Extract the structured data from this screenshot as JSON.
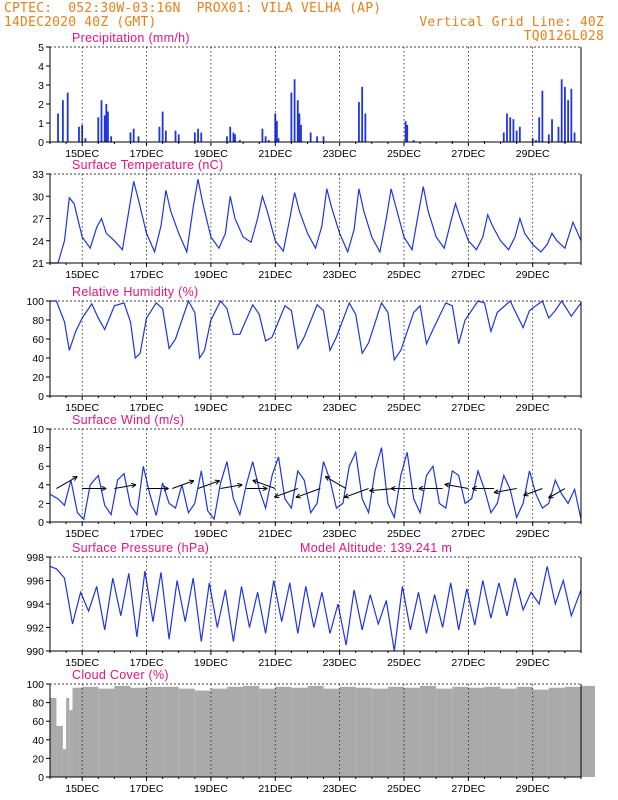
{
  "header": {
    "line1": "CPTEC:  052:30W-03:16N  PROX01: VILA VELHA (AP)",
    "line2_left": "14DEC2020 40Z (GMT)",
    "line2_right": "Vertical Grid Line: 40Z",
    "line3_right": "TQ0126L028",
    "color": "#e8801a"
  },
  "colors": {
    "title": "#e8127c",
    "line": "#1f35e0",
    "bar": "#1f35e0",
    "cloud": "#aaaaaa",
    "wind_arrow": "#000000"
  },
  "chart_data": [
    {
      "type": "bar",
      "title": "Precipitation (mm/h)",
      "x_tick_labels": [
        "15DEC",
        "17DEC",
        "19DEC",
        "21DEC",
        "23DEC",
        "25DEC",
        "27DEC",
        "29DEC"
      ],
      "ylim": [
        0,
        5
      ],
      "y_ticks": [
        0,
        1,
        2,
        3,
        4,
        5
      ],
      "x_day": [
        0.25,
        0.4,
        0.55,
        0.9,
        1.0,
        1.1,
        1.5,
        1.6,
        1.7,
        1.75,
        1.8,
        1.9,
        2.5,
        2.6,
        2.75,
        3.4,
        3.5,
        3.6,
        3.9,
        4.0,
        4.5,
        4.6,
        4.7,
        5.5,
        5.6,
        5.7,
        5.75,
        5.9,
        6.6,
        6.7,
        6.8,
        7.0,
        7.05,
        7.1,
        7.5,
        7.6,
        7.7,
        7.75,
        7.8,
        8.1,
        8.3,
        8.5,
        9.6,
        9.7,
        9.8,
        11.05,
        11.1,
        11.3,
        12.5,
        13.5,
        14.1,
        14.2,
        14.3,
        14.4,
        14.5,
        14.6,
        15.0,
        15.1,
        15.2,
        15.3,
        15.5,
        15.6,
        15.8,
        15.9,
        16.0,
        16.1,
        16.2,
        16.3
      ],
      "values": [
        1.5,
        2.2,
        2.6,
        0.8,
        0.9,
        0.2,
        1.3,
        2.2,
        1.4,
        2.0,
        1.6,
        0.3,
        0.5,
        0.7,
        0.3,
        0.8,
        1.6,
        0.6,
        0.6,
        0.4,
        0.5,
        0.7,
        0.5,
        0.3,
        0.8,
        0.5,
        0.4,
        0.1,
        0.7,
        0.3,
        0.1,
        1.5,
        1.1,
        0.2,
        2.6,
        3.3,
        2.2,
        1.5,
        0.9,
        0.5,
        0.3,
        0.3,
        2.1,
        2.9,
        1.5,
        1.1,
        0.9,
        0.1,
        0.05,
        0.05,
        0.5,
        1.5,
        1.3,
        1.2,
        0.6,
        0.8,
        0.2,
        0.1,
        1.3,
        2.7,
        0.4,
        1.2,
        0.8,
        3.3,
        2.9,
        2.2,
        2.8,
        0.5
      ]
    },
    {
      "type": "line",
      "title": "Surface Temperature (nC)",
      "x_tick_labels": [
        "15DEC",
        "17DEC",
        "19DEC",
        "21DEC",
        "23DEC",
        "25DEC",
        "27DEC",
        "29DEC"
      ],
      "ylim": [
        21,
        33
      ],
      "y_ticks": [
        21,
        24,
        27,
        30,
        33
      ],
      "x_day": [
        0,
        0.25,
        0.45,
        0.6,
        0.75,
        1.0,
        1.25,
        1.45,
        1.6,
        1.75,
        2.0,
        2.25,
        2.45,
        2.6,
        2.75,
        3.0,
        3.25,
        3.45,
        3.6,
        3.75,
        4.0,
        4.25,
        4.45,
        4.6,
        4.75,
        5.0,
        5.25,
        5.45,
        5.6,
        5.75,
        6.0,
        6.25,
        6.45,
        6.6,
        6.75,
        7.0,
        7.25,
        7.45,
        7.6,
        7.75,
        8.0,
        8.25,
        8.45,
        8.6,
        8.75,
        9.0,
        9.25,
        9.45,
        9.6,
        9.75,
        10.0,
        10.25,
        10.45,
        10.6,
        10.75,
        11.0,
        11.25,
        11.45,
        11.6,
        11.75,
        12.0,
        12.25,
        12.45,
        12.6,
        12.75,
        13.0,
        13.25,
        13.45,
        13.6,
        13.75,
        14.0,
        14.25,
        14.45,
        14.6,
        14.75,
        15.0,
        15.25,
        15.45,
        15.6,
        15.75,
        16.0,
        16.25,
        16.5
      ],
      "values": [
        21.0,
        21.0,
        24.0,
        29.8,
        29.0,
        24.5,
        23.0,
        25.8,
        27.0,
        25.0,
        24.0,
        22.8,
        28.0,
        32.0,
        29.5,
        25.0,
        22.5,
        26.0,
        30.8,
        28.0,
        25.0,
        22.5,
        28.5,
        32.3,
        29.0,
        24.5,
        23.0,
        25.0,
        30.0,
        27.0,
        24.5,
        23.8,
        27.0,
        30.0,
        28.0,
        24.0,
        22.6,
        27.0,
        30.5,
        28.0,
        25.0,
        23.0,
        26.0,
        31.0,
        28.5,
        25.0,
        22.5,
        25.5,
        31.0,
        28.0,
        24.5,
        22.5,
        27.0,
        31.0,
        28.5,
        24.5,
        22.8,
        27.8,
        31.3,
        28.0,
        24.5,
        23.0,
        26.5,
        29.0,
        27.0,
        24.0,
        22.8,
        24.5,
        27.5,
        26.0,
        24.0,
        22.8,
        24.5,
        27.0,
        25.0,
        23.5,
        22.5,
        23.5,
        25.0,
        24.0,
        23.0,
        26.5,
        24.0
      ]
    },
    {
      "type": "line",
      "title": "Relative Humidity (%)",
      "x_tick_labels": [
        "15DEC",
        "17DEC",
        "19DEC",
        "21DEC",
        "23DEC",
        "25DEC",
        "27DEC",
        "29DEC"
      ],
      "ylim": [
        0,
        100
      ],
      "y_ticks": [
        0,
        20,
        40,
        60,
        80,
        100
      ],
      "x_day": [
        0,
        0.2,
        0.45,
        0.6,
        0.8,
        1.0,
        1.3,
        1.5,
        1.7,
        2.0,
        2.3,
        2.5,
        2.65,
        2.8,
        3.0,
        3.3,
        3.5,
        3.7,
        3.9,
        4.3,
        4.5,
        4.65,
        4.8,
        5.0,
        5.3,
        5.5,
        5.7,
        5.9,
        6.3,
        6.5,
        6.7,
        6.9,
        7.3,
        7.5,
        7.7,
        7.9,
        8.3,
        8.5,
        8.7,
        8.9,
        9.3,
        9.5,
        9.7,
        9.9,
        10.3,
        10.5,
        10.7,
        10.9,
        11.3,
        11.5,
        11.7,
        11.9,
        12.3,
        12.5,
        12.7,
        12.9,
        13.3,
        13.5,
        13.7,
        13.9,
        14.3,
        14.5,
        14.7,
        14.9,
        15.3,
        15.5,
        15.7,
        15.9,
        16.2,
        16.5
      ],
      "values": [
        100,
        100,
        78,
        48,
        68,
        82,
        97,
        82,
        70,
        95,
        98,
        78,
        40,
        45,
        82,
        98,
        92,
        50,
        60,
        100,
        88,
        40,
        48,
        80,
        100,
        92,
        65,
        65,
        96,
        86,
        58,
        62,
        95,
        90,
        50,
        62,
        96,
        90,
        48,
        62,
        98,
        86,
        45,
        56,
        98,
        88,
        38,
        48,
        88,
        95,
        55,
        70,
        98,
        95,
        55,
        80,
        100,
        98,
        68,
        88,
        100,
        86,
        72,
        90,
        100,
        82,
        90,
        100,
        84,
        98
      ]
    },
    {
      "type": "line",
      "title": "Surface Wind (m/s)",
      "x_tick_labels": [
        "15DEC",
        "17DEC",
        "19DEC",
        "21DEC",
        "23DEC",
        "25DEC",
        "27DEC",
        "29DEC"
      ],
      "ylim": [
        0,
        10
      ],
      "y_ticks": [
        0,
        2,
        4,
        6,
        8,
        10
      ],
      "x_day": [
        0,
        0.25,
        0.45,
        0.65,
        0.85,
        1.05,
        1.25,
        1.5,
        1.7,
        1.9,
        2.1,
        2.3,
        2.5,
        2.7,
        2.9,
        3.1,
        3.3,
        3.5,
        3.7,
        3.9,
        4.1,
        4.3,
        4.5,
        4.7,
        4.9,
        5.1,
        5.3,
        5.5,
        5.7,
        5.9,
        6.1,
        6.3,
        6.5,
        6.7,
        6.9,
        7.1,
        7.3,
        7.5,
        7.7,
        7.9,
        8.1,
        8.3,
        8.5,
        8.7,
        8.9,
        9.1,
        9.3,
        9.5,
        9.7,
        9.9,
        10.1,
        10.3,
        10.5,
        10.7,
        10.9,
        11.1,
        11.3,
        11.5,
        11.7,
        11.9,
        12.1,
        12.3,
        12.5,
        12.7,
        12.9,
        13.1,
        13.3,
        13.5,
        13.7,
        13.9,
        14.1,
        14.3,
        14.5,
        14.7,
        14.9,
        15.1,
        15.3,
        15.5,
        15.7,
        15.9,
        16.1,
        16.3,
        16.5
      ],
      "values": [
        3,
        2.5,
        1.8,
        4.5,
        1.0,
        0.3,
        4.0,
        5.0,
        1.8,
        0.8,
        4.5,
        5.2,
        1.8,
        0.8,
        6.0,
        3.0,
        0.7,
        4.2,
        2.0,
        1.5,
        4.0,
        1.0,
        2.0,
        5.5,
        1.2,
        0.3,
        4.2,
        6.5,
        2.5,
        0.8,
        4.0,
        6.5,
        3.5,
        1.5,
        5.0,
        7.0,
        2.5,
        1.5,
        5.5,
        4.5,
        1.0,
        2.0,
        6.5,
        4.5,
        1.5,
        2.0,
        6.0,
        7.5,
        2.5,
        1.0,
        5.5,
        8.0,
        2.0,
        0.5,
        5.0,
        7.5,
        2.5,
        1.0,
        5.0,
        6.0,
        2.0,
        1.5,
        5.5,
        5.0,
        2.0,
        2.5,
        5.5,
        3.5,
        1.0,
        2.0,
        5.0,
        3.5,
        0.5,
        2.0,
        5.5,
        3.0,
        1.5,
        2.0,
        4.5,
        3.0,
        2.0,
        3.5,
        0.3
      ],
      "vectors_x_day": [
        0.2,
        1.0,
        2.0,
        3.0,
        3.8,
        4.6,
        5.3,
        6.1,
        7.0,
        7.7,
        8.4,
        9.2,
        9.9,
        10.7,
        11.4,
        12.2,
        13.0,
        13.8,
        14.5,
        15.3,
        16.0
      ],
      "vectors_dir_deg": [
        30,
        0,
        10,
        0,
        20,
        20,
        10,
        0,
        160,
        200,
        200,
        150,
        200,
        185,
        180,
        180,
        170,
        180,
        190,
        200,
        210
      ],
      "vectors_len": [
        1.0,
        1.0,
        0.8,
        0.8,
        0.9,
        0.9,
        0.8,
        0.7,
        1.0,
        1.1,
        1.2,
        1.0,
        1.2,
        1.1,
        1.2,
        1.0,
        1.0,
        0.8,
        0.9,
        0.6,
        0.5
      ]
    },
    {
      "type": "line",
      "title": "Surface Pressure (hPa)",
      "annotation": "Model Altitude: 139.241 m",
      "x_tick_labels": [
        "15DEC",
        "17DEC",
        "19DEC",
        "21DEC",
        "23DEC",
        "25DEC",
        "27DEC",
        "29DEC"
      ],
      "ylim": [
        990,
        998
      ],
      "y_ticks": [
        990,
        992,
        994,
        996,
        998
      ],
      "x_day": [
        0,
        0.2,
        0.45,
        0.7,
        0.95,
        1.2,
        1.45,
        1.7,
        1.95,
        2.2,
        2.45,
        2.7,
        2.95,
        3.2,
        3.45,
        3.7,
        3.95,
        4.2,
        4.45,
        4.7,
        4.95,
        5.2,
        5.45,
        5.7,
        5.95,
        6.2,
        6.45,
        6.7,
        6.95,
        7.2,
        7.45,
        7.7,
        7.95,
        8.2,
        8.45,
        8.7,
        8.95,
        9.2,
        9.45,
        9.7,
        9.95,
        10.2,
        10.45,
        10.7,
        10.95,
        11.2,
        11.45,
        11.7,
        11.95,
        12.2,
        12.45,
        12.7,
        12.95,
        13.2,
        13.45,
        13.7,
        13.95,
        14.2,
        14.45,
        14.7,
        14.95,
        15.2,
        15.45,
        15.7,
        15.95,
        16.2,
        16.5
      ],
      "values": [
        997.2,
        997.0,
        996.2,
        992.3,
        995.0,
        993.4,
        995.5,
        991.8,
        996.2,
        993.0,
        996.6,
        991.2,
        996.8,
        992.5,
        996.7,
        991.0,
        996.0,
        992.5,
        996.2,
        990.8,
        995.8,
        992.0,
        995.2,
        990.8,
        995.5,
        992.0,
        995.0,
        991.5,
        996.0,
        992.5,
        995.8,
        991.5,
        995.5,
        992.0,
        995.0,
        991.5,
        994.0,
        990.5,
        995.2,
        991.8,
        994.8,
        992.3,
        994.3,
        990.0,
        995.5,
        991.8,
        995.0,
        991.5,
        994.8,
        992.0,
        995.8,
        991.8,
        995.3,
        992.2,
        996.0,
        992.8,
        995.8,
        993.0,
        996.2,
        993.5,
        995.0,
        994.0,
        997.2,
        994.0,
        996.0,
        993.0,
        995.2
      ]
    },
    {
      "type": "bar",
      "title": "Cloud Cover (%)",
      "x_tick_labels": [
        "15DEC",
        "17DEC",
        "19DEC",
        "21DEC",
        "23DEC",
        "25DEC",
        "27DEC",
        "29DEC"
      ],
      "ylim": [
        0,
        100
      ],
      "y_ticks": [
        0,
        20,
        40,
        60,
        80,
        100
      ],
      "x_day": [
        0,
        0.2,
        0.4,
        0.5,
        0.6,
        0.7,
        1.0,
        1.5,
        2.0,
        2.5,
        3.0,
        3.5,
        4.0,
        4.5,
        5.0,
        5.5,
        6.0,
        6.5,
        7.0,
        7.5,
        8.0,
        8.5,
        9.0,
        9.5,
        10.0,
        10.5,
        11.0,
        11.5,
        12.0,
        12.5,
        13.0,
        13.5,
        14.0,
        14.5,
        15.0,
        15.5,
        16.0,
        16.5
      ],
      "values": [
        85,
        55,
        30,
        85,
        72,
        96,
        97,
        95,
        98,
        96,
        97,
        97,
        95,
        93,
        95,
        97,
        98,
        95,
        97,
        96,
        98,
        95,
        97,
        96,
        95,
        97,
        96,
        98,
        95,
        97,
        96,
        97,
        95,
        97,
        94,
        96,
        97,
        98
      ]
    }
  ]
}
